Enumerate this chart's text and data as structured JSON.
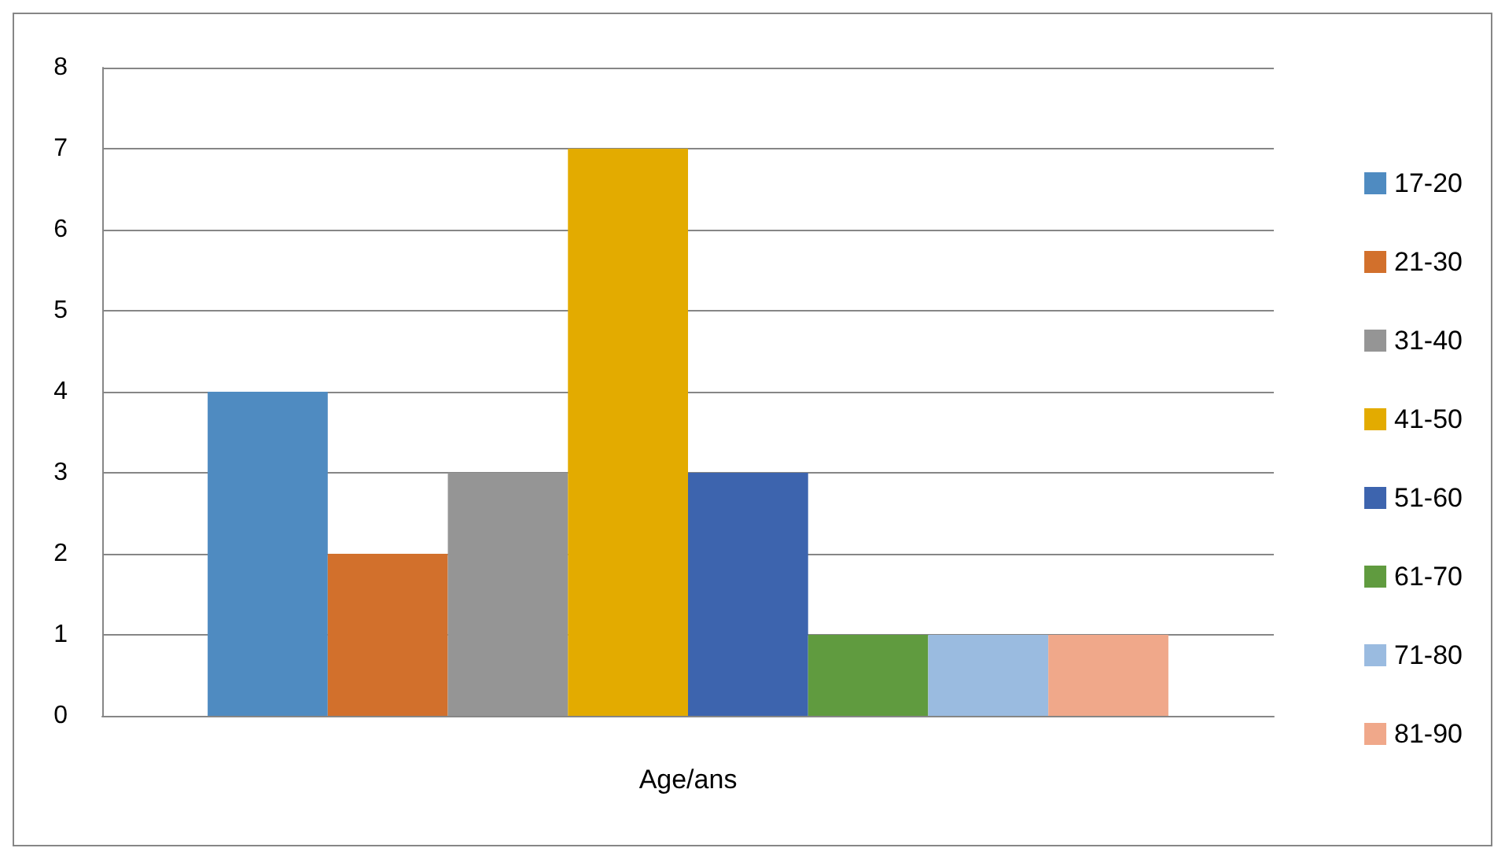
{
  "chart_data": {
    "type": "bar",
    "categories": [
      "Age/ans"
    ],
    "series": [
      {
        "name": "17-20",
        "color": "#4f8bc1",
        "values": [
          4
        ]
      },
      {
        "name": "21-30",
        "color": "#d2702c",
        "values": [
          2
        ]
      },
      {
        "name": "31-40",
        "color": "#959595",
        "values": [
          3
        ]
      },
      {
        "name": "41-50",
        "color": "#e3ab00",
        "values": [
          7
        ]
      },
      {
        "name": "51-60",
        "color": "#3d64ae",
        "values": [
          3
        ]
      },
      {
        "name": "61-70",
        "color": "#609b3f",
        "values": [
          1
        ]
      },
      {
        "name": "71-80",
        "color": "#9abbe0",
        "values": [
          1
        ]
      },
      {
        "name": "81-90",
        "color": "#f0a88a",
        "values": [
          1
        ]
      }
    ],
    "ylim": [
      0,
      8
    ],
    "yticks": [
      0,
      1,
      2,
      3,
      4,
      5,
      6,
      7,
      8
    ],
    "grid": "y",
    "legend": "right"
  }
}
